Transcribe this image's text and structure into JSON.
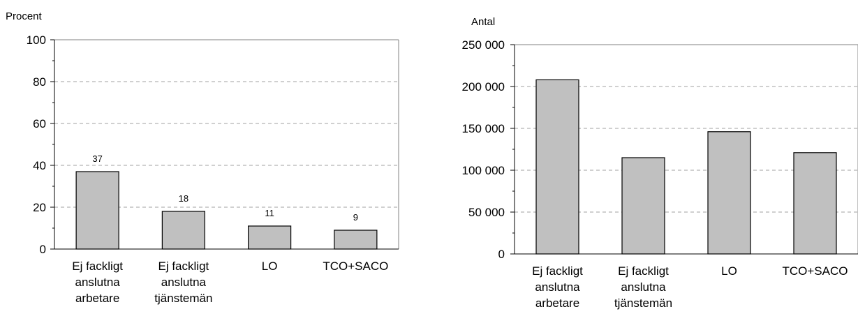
{
  "chart_data": [
    {
      "type": "bar",
      "title": "",
      "ylabel": "Procent",
      "xlabel": "",
      "ylim": [
        0,
        100
      ],
      "yticks": [
        0,
        20,
        40,
        60,
        80,
        100
      ],
      "ytick_labels": [
        "0",
        "20",
        "40",
        "60",
        "80",
        "100"
      ],
      "categories": [
        [
          "Ej fackligt",
          "anslutna",
          "arbetare"
        ],
        [
          "Ej fackligt",
          "anslutna",
          "tjänstemän"
        ],
        [
          "LO"
        ],
        [
          "TCO+SACO"
        ]
      ],
      "values": [
        37,
        18,
        11,
        9
      ],
      "data_labels": [
        "37",
        "18",
        "11",
        "9"
      ],
      "grid": true,
      "bar_color": "#c0c0c0"
    },
    {
      "type": "bar",
      "title": "",
      "ylabel": "Antal",
      "xlabel": "",
      "ylim": [
        0,
        250000
      ],
      "yticks": [
        0,
        50000,
        100000,
        150000,
        200000,
        250000
      ],
      "ytick_labels": [
        "0",
        "50 000",
        "100 000",
        "150 000",
        "200 000",
        "250 000"
      ],
      "categories": [
        [
          "Ej fackligt",
          "anslutna",
          "arbetare"
        ],
        [
          "Ej fackligt",
          "anslutna",
          "tjänstemän"
        ],
        [
          "LO"
        ],
        [
          "TCO+SACO"
        ]
      ],
      "values": [
        208000,
        115000,
        146000,
        121000
      ],
      "grid": true,
      "bar_color": "#c0c0c0"
    }
  ]
}
